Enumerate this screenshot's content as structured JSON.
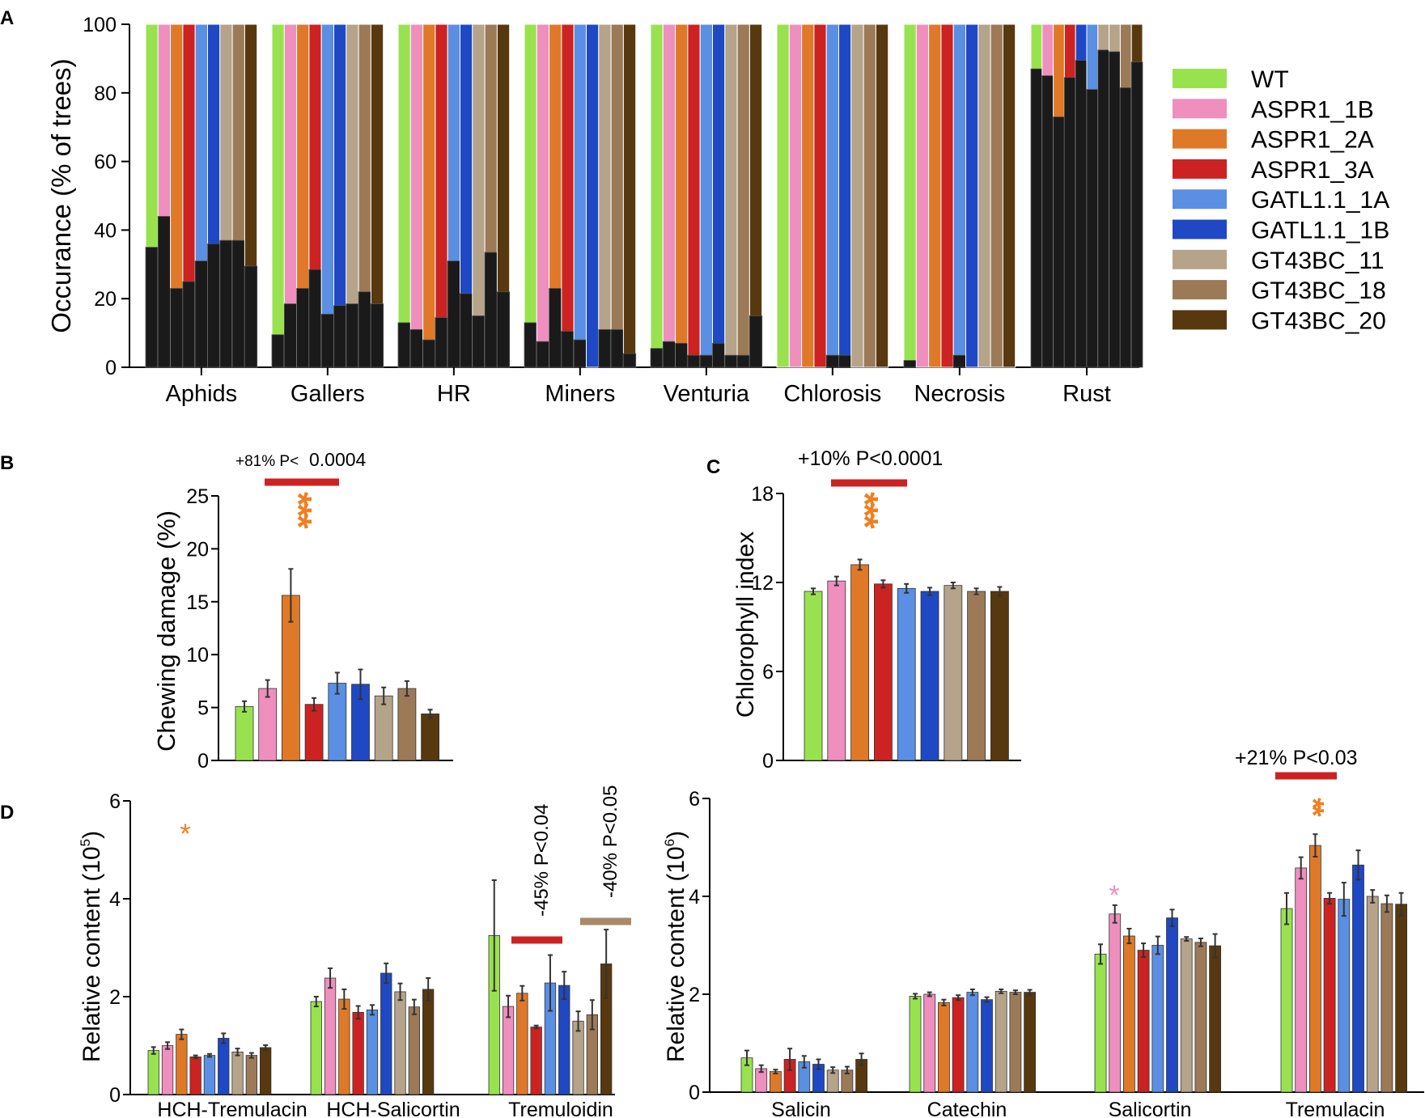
{
  "colors": {
    "WT": "#99e24f",
    "ASPR1_1B": "#ee8fbe",
    "ASPR1_2A": "#df7928",
    "ASPR1_3A": "#cc2222",
    "GATL1.1_1A": "#5a8fe3",
    "GATL1.1_1B": "#1f48c4",
    "GT43BC_11": "#b5a38a",
    "GT43BC_18": "#9c7a58",
    "GT43BC_20": "#58380f",
    "dark": "#1a1a1a",
    "sig_red": "#cc2222",
    "sig_tan": "#a98a68",
    "star_orange": "#f07f1f",
    "star_pink": "#ee8fbe"
  },
  "panel_labels": {
    "A": "A",
    "B": "B",
    "C": "C",
    "D": "D"
  },
  "chart_data": [
    {
      "id": "A",
      "type": "bar",
      "stacked": true,
      "ylabel": "Occurance (% of trees)",
      "ylim": [
        0,
        100
      ],
      "yticks": [
        "0",
        "20",
        "40",
        "60",
        "80",
        "100"
      ],
      "categories": [
        "Aphids",
        "Gallers",
        "HR",
        "Miners",
        "Venturia",
        "Chlorosis",
        "Necrosis",
        "Rust"
      ],
      "legend": [
        "WT",
        "ASPR1_1B",
        "ASPR1_2A",
        "ASPR1_3A",
        "GATL1.1_1A",
        "GATL1.1_1B",
        "GT43BC_11",
        "GT43BC_18",
        "GT43BC_20"
      ],
      "legend_position": "right",
      "series_dark_values": [
        [
          35,
          44,
          23,
          25,
          31,
          36,
          37,
          37,
          29.5
        ],
        [
          9.5,
          18.5,
          23,
          28.5,
          15.5,
          18,
          18.5,
          22,
          18.5
        ],
        [
          13,
          11,
          8,
          14.5,
          31,
          21.5,
          15,
          33.5,
          22
        ],
        [
          13,
          7.5,
          23,
          10.5,
          8,
          0,
          11,
          11,
          4
        ],
        [
          5.5,
          7.5,
          7,
          3.5,
          3.5,
          7,
          3.5,
          3.5,
          15
        ],
        [
          0,
          0,
          0,
          0,
          3.5,
          3.5,
          0,
          0,
          0
        ],
        [
          2,
          0,
          0,
          0,
          3.5,
          0,
          0,
          0,
          0
        ],
        [
          87,
          85,
          73,
          84.5,
          89.5,
          81,
          92.5,
          92,
          81.5,
          89
        ]
      ],
      "rust_series": [
        "WT",
        "ASPR1_1B",
        "ASPR1_2A",
        "ASPR1_3A",
        "GATL1.1_1B",
        "GATL1.1_1A",
        "GT43BC_11",
        "GT43BC_11",
        "GT43BC_18",
        "GT43BC_20"
      ]
    },
    {
      "id": "B",
      "type": "bar",
      "ylabel": "Chewing damage (%)",
      "ylim": [
        0,
        25
      ],
      "yticks": [
        "0",
        "5",
        "10",
        "15",
        "20",
        "25"
      ],
      "series": [
        "WT",
        "ASPR1_1B",
        "ASPR1_2A",
        "ASPR1_3A",
        "GATL1.1_1A",
        "GATL1.1_1B",
        "GT43BC_11",
        "GT43BC_18",
        "GT43BC_20"
      ],
      "values": [
        5.1,
        6.8,
        15.6,
        5.3,
        7.3,
        7.2,
        6.1,
        6.8,
        4.4
      ],
      "errors": [
        0.5,
        0.8,
        2.5,
        0.6,
        1.0,
        1.4,
        0.8,
        0.7,
        0.4
      ],
      "annotation": {
        "prefix": "+81% P<",
        "value": "0.0004",
        "stars": "***"
      }
    },
    {
      "id": "C",
      "type": "bar",
      "ylabel": "Chlorophyll index",
      "ylim": [
        0,
        18
      ],
      "yticks": [
        "0",
        "6",
        "12",
        "18"
      ],
      "series": [
        "WT",
        "ASPR1_1B",
        "ASPR1_2A",
        "ASPR1_3A",
        "GATL1.1_1A",
        "GATL1.1_1B",
        "GT43BC_11",
        "GT43BC_18",
        "GT43BC_20"
      ],
      "values": [
        11.4,
        12.1,
        13.2,
        11.9,
        11.6,
        11.4,
        11.8,
        11.4,
        11.4
      ],
      "errors": [
        0.2,
        0.3,
        0.35,
        0.25,
        0.3,
        0.25,
        0.2,
        0.2,
        0.3
      ],
      "annotation": {
        "text": "+10% P<0.0001",
        "stars": "***"
      }
    },
    {
      "id": "D1",
      "type": "bar",
      "ylabel": "Relative content (10",
      "ylabel_exp": "5",
      "ylabel_close": ")",
      "ylim": [
        0,
        6
      ],
      "yticks": [
        "0",
        "2",
        "4",
        "6"
      ],
      "categories": [
        "HCH-Tremulacin",
        "HCH-Salicortin",
        "Tremuloidin"
      ],
      "series": [
        "WT",
        "ASPR1_1B",
        "ASPR1_2A",
        "ASPR1_3A",
        "GATL1.1_1A",
        "GATL1.1_1B",
        "GT43BC_11",
        "GT43BC_18",
        "GT43BC_20"
      ],
      "values": [
        [
          0.9,
          1.0,
          1.23,
          0.77,
          0.8,
          1.15,
          0.87,
          0.8,
          0.96
        ],
        [
          1.9,
          2.38,
          1.95,
          1.68,
          1.73,
          2.48,
          2.1,
          1.79,
          2.15
        ],
        [
          3.25,
          1.8,
          2.07,
          1.38,
          2.28,
          2.23,
          1.5,
          1.63,
          2.67
        ]
      ],
      "errors": [
        [
          0.07,
          0.07,
          0.1,
          0.03,
          0.03,
          0.1,
          0.07,
          0.05,
          0.05
        ],
        [
          0.1,
          0.2,
          0.2,
          0.13,
          0.1,
          0.2,
          0.17,
          0.15,
          0.23
        ],
        [
          1.13,
          0.22,
          0.15,
          0.03,
          0.57,
          0.28,
          0.2,
          0.3,
          0.7
        ]
      ],
      "annotations": {
        "star": "*",
        "tremuloidin_asp": "-45% P<0.04",
        "tremuloidin_gt": "-40% P<0.05"
      }
    },
    {
      "id": "D2",
      "type": "bar",
      "ylabel": "Relative content (10",
      "ylabel_exp": "6",
      "ylabel_close": ")",
      "ylim": [
        0,
        6
      ],
      "yticks": [
        "0",
        "2",
        "4",
        "6"
      ],
      "categories": [
        "Salicin",
        "Catechin",
        "Salicortin",
        "Tremulacin"
      ],
      "series": [
        "WT",
        "ASPR1_1B",
        "ASPR1_2A",
        "ASPR1_3A",
        "GATL1.1_1A",
        "GATL1.1_1B",
        "GT43BC_11",
        "GT43BC_18",
        "GT43BC_20"
      ],
      "values": [
        [
          0.7,
          0.48,
          0.42,
          0.67,
          0.62,
          0.57,
          0.45,
          0.45,
          0.67
        ],
        [
          1.96,
          2.0,
          1.83,
          1.93,
          2.04,
          1.89,
          2.06,
          2.04,
          2.04
        ],
        [
          2.82,
          3.64,
          3.19,
          2.9,
          3.0,
          3.56,
          3.13,
          3.06,
          2.99
        ],
        [
          3.75,
          4.58,
          5.04,
          3.96,
          3.94,
          4.64,
          4.0,
          3.85,
          3.84
        ]
      ],
      "errors": [
        [
          0.15,
          0.07,
          0.04,
          0.22,
          0.12,
          0.1,
          0.06,
          0.07,
          0.12
        ],
        [
          0.05,
          0.04,
          0.06,
          0.05,
          0.06,
          0.05,
          0.04,
          0.04,
          0.05
        ],
        [
          0.2,
          0.18,
          0.15,
          0.14,
          0.18,
          0.17,
          0.04,
          0.08,
          0.24
        ],
        [
          0.32,
          0.22,
          0.23,
          0.11,
          0.34,
          0.3,
          0.13,
          0.17,
          0.23
        ]
      ],
      "annotations": {
        "salicortin_star": "*",
        "tremulacin_stars": "**",
        "tremulacin_text": "+21% P<0.03"
      }
    }
  ]
}
